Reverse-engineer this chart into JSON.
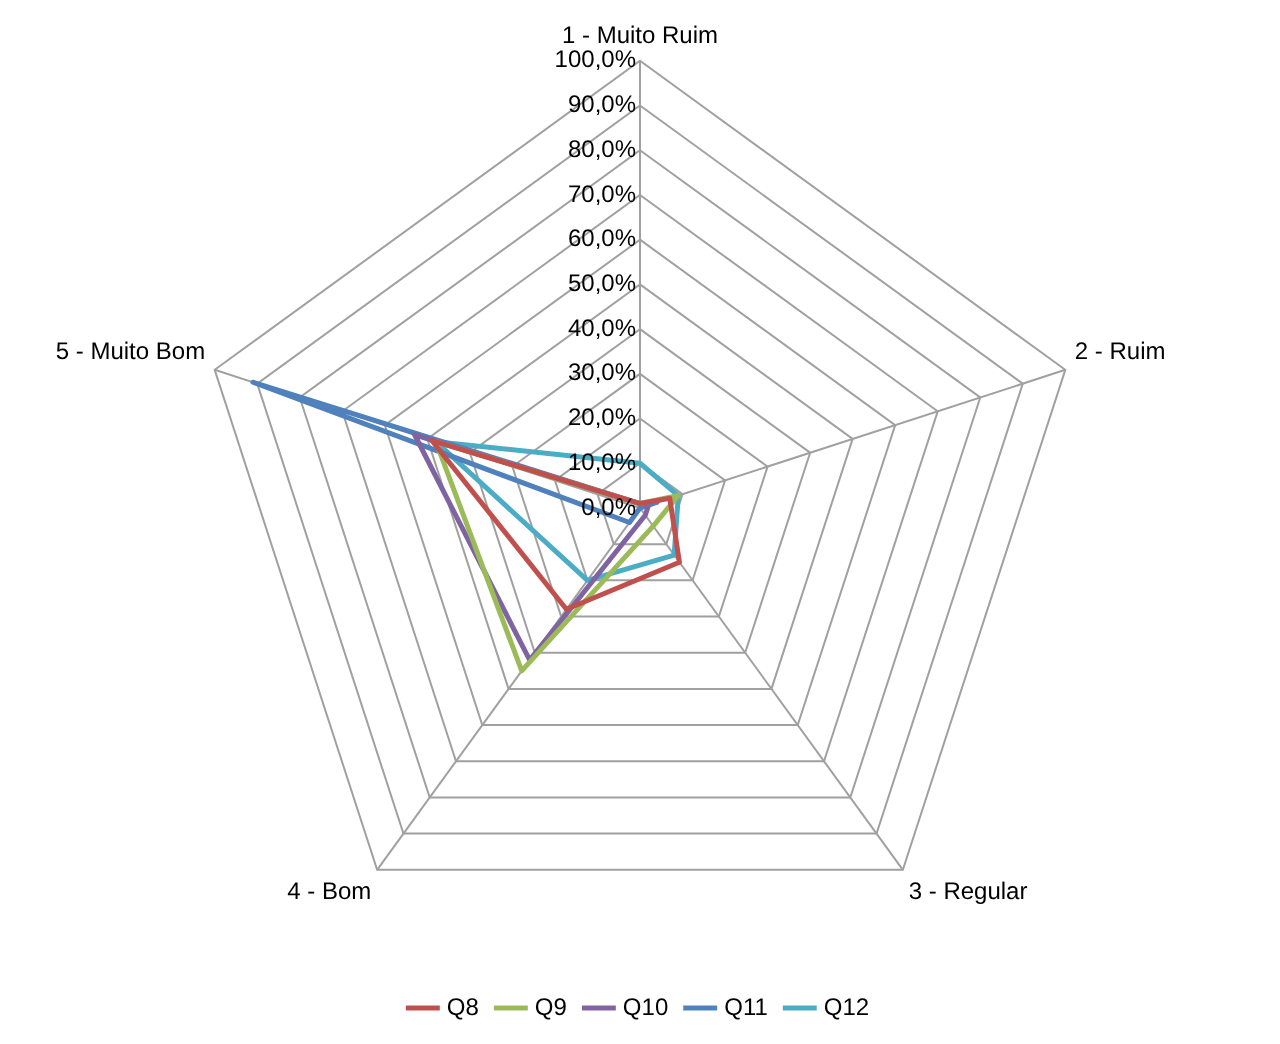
{
  "chart_data": {
    "type": "radar",
    "categories": [
      "1 - Muito Ruim",
      "2 - Ruim",
      "3 - Regular",
      "4 - Bom",
      "5 - Muito Bom"
    ],
    "ylim": [
      0,
      100
    ],
    "yticks": [
      {
        "value": 0,
        "label": "0,0%"
      },
      {
        "value": 10,
        "label": "10,0%"
      },
      {
        "value": 20,
        "label": "20,0%"
      },
      {
        "value": 30,
        "label": "30,0%"
      },
      {
        "value": 40,
        "label": "40,0%"
      },
      {
        "value": 50,
        "label": "50,0%"
      },
      {
        "value": 60,
        "label": "60,0%"
      },
      {
        "value": 70,
        "label": "70,0%"
      },
      {
        "value": 80,
        "label": "80,0%"
      },
      {
        "value": 90,
        "label": "90,0%"
      },
      {
        "value": 100,
        "label": "100,0%"
      }
    ],
    "series": [
      {
        "name": "Q8",
        "color": "#c0504d",
        "values": [
          1,
          7,
          15,
          28,
          49
        ]
      },
      {
        "name": "Q9",
        "color": "#9bbb59",
        "values": [
          1,
          9,
          5,
          45,
          48
        ]
      },
      {
        "name": "Q10",
        "color": "#8064a2",
        "values": [
          1,
          2,
          2,
          42,
          53
        ]
      },
      {
        "name": "Q11",
        "color": "#4f81bd",
        "values": [
          1,
          4,
          0,
          4,
          91
        ]
      },
      {
        "name": "Q12",
        "color": "#4bacc6",
        "values": [
          10,
          9,
          13,
          20,
          48
        ]
      }
    ],
    "grid": true,
    "legend": "bottom",
    "marker": "none"
  }
}
